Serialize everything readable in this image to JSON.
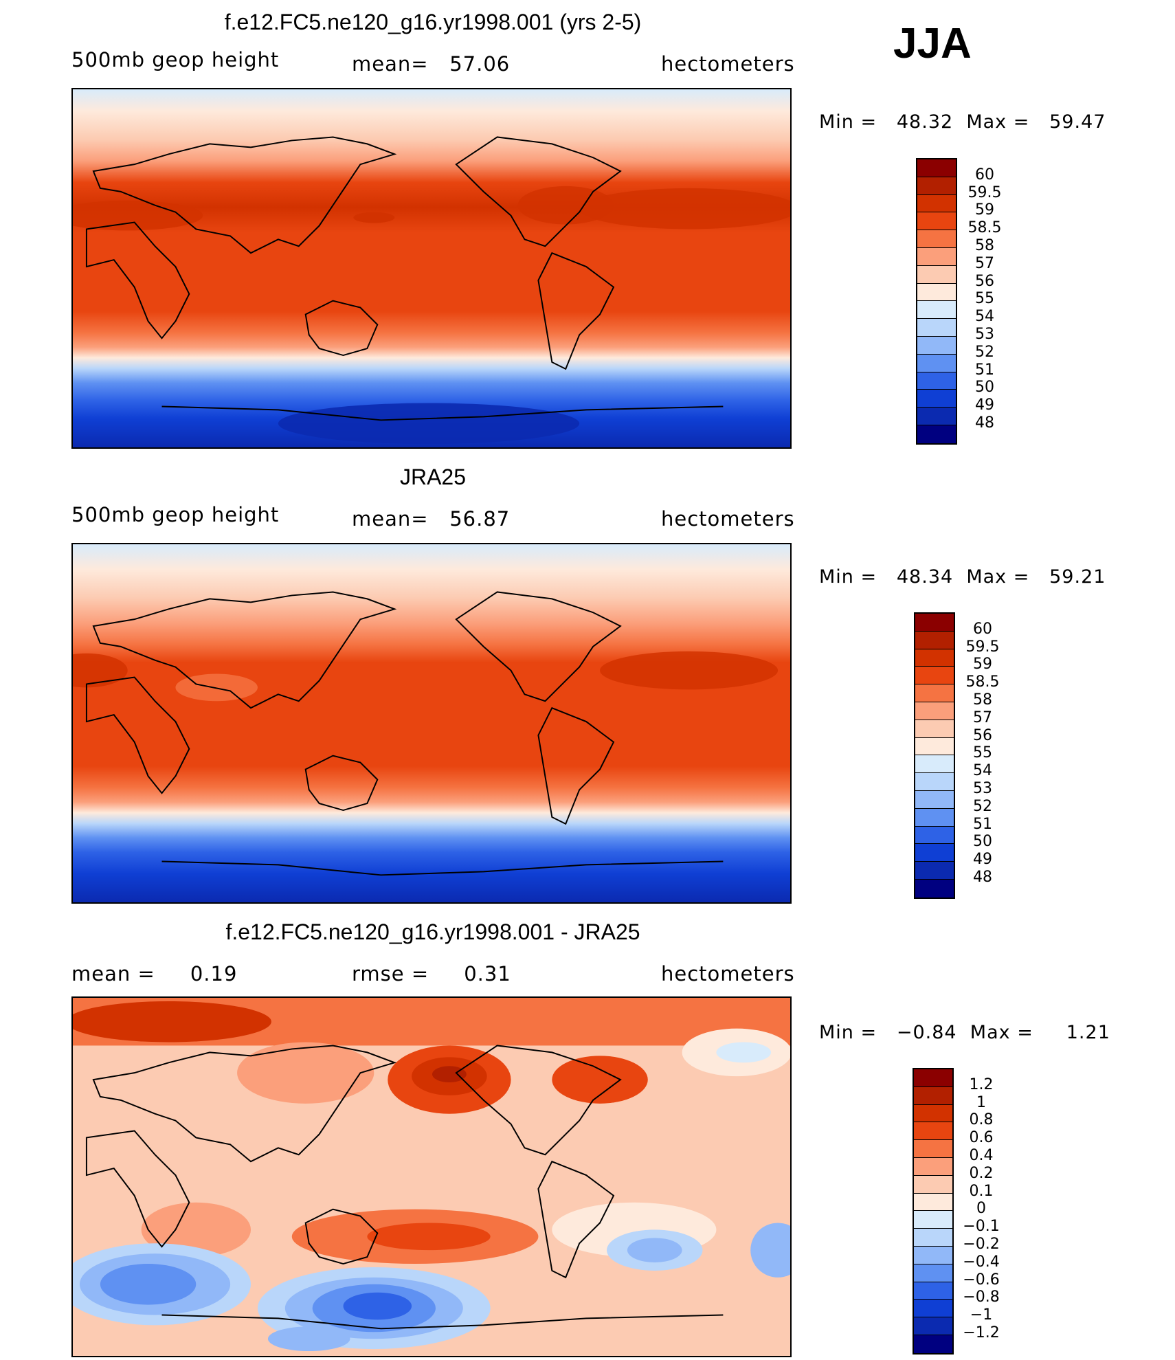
{
  "season": "JJA",
  "units": "hectometers",
  "chart_data": [
    {
      "type": "heatmap",
      "title": "f.e12.FC5.ne120_g16.yr1998.001 (yrs 2-5)",
      "left_label": "500mb geop height",
      "stat_label": "mean=",
      "stat_value": "57.06",
      "units": "hectometers",
      "min_label": "Min =",
      "min": "48.32",
      "max_label": "Max =",
      "max": "59.47",
      "levels": [
        "60",
        "59.5",
        "59",
        "58.5",
        "58",
        "57",
        "56",
        "55",
        "54",
        "53",
        "52",
        "51",
        "50",
        "49",
        "48"
      ],
      "colors": [
        "#8b0000",
        "#b22000",
        "#d23200",
        "#e84510",
        "#f57342",
        "#fb9f7b",
        "#fccbb2",
        "#feeadc",
        "#d8ebfb",
        "#b9d6fa",
        "#91b8f8",
        "#5f91f2",
        "#2e62e6",
        "#0f3fd4",
        "#0b2ab0",
        "#000080"
      ]
    },
    {
      "type": "heatmap",
      "title": "JRA25",
      "left_label": "500mb geop height",
      "stat_label": "mean=",
      "stat_value": "56.87",
      "units": "hectometers",
      "min_label": "Min =",
      "min": "48.34",
      "max_label": "Max =",
      "max": "59.21",
      "levels": [
        "60",
        "59.5",
        "59",
        "58.5",
        "58",
        "57",
        "56",
        "55",
        "54",
        "53",
        "52",
        "51",
        "50",
        "49",
        "48"
      ],
      "colors": [
        "#8b0000",
        "#b22000",
        "#d23200",
        "#e84510",
        "#f57342",
        "#fb9f7b",
        "#fccbb2",
        "#feeadc",
        "#d8ebfb",
        "#b9d6fa",
        "#91b8f8",
        "#5f91f2",
        "#2e62e6",
        "#0f3fd4",
        "#0b2ab0",
        "#000080"
      ]
    },
    {
      "type": "heatmap",
      "title": "f.e12.FC5.ne120_g16.yr1998.001 - JRA25",
      "left_label": "mean =",
      "left_value": "0.19",
      "stat_label": "rmse =",
      "stat_value": "0.31",
      "units": "hectometers",
      "min_label": "Min =",
      "min": "−0.84",
      "max_label": "Max =",
      "max": "1.21",
      "levels": [
        "1.2",
        "1",
        "0.8",
        "0.6",
        "0.4",
        "0.2",
        "0.1",
        "0",
        "−0.1",
        "−0.2",
        "−0.4",
        "−0.6",
        "−0.8",
        "−1",
        "−1.2"
      ],
      "colors": [
        "#8b0000",
        "#b22000",
        "#d23200",
        "#e84510",
        "#f57342",
        "#fb9f7b",
        "#fccbb2",
        "#feeadc",
        "#d8ebfb",
        "#b9d6fa",
        "#91b8f8",
        "#5f91f2",
        "#2e62e6",
        "#0f3fd4",
        "#0b2ab0",
        "#000080"
      ]
    }
  ]
}
